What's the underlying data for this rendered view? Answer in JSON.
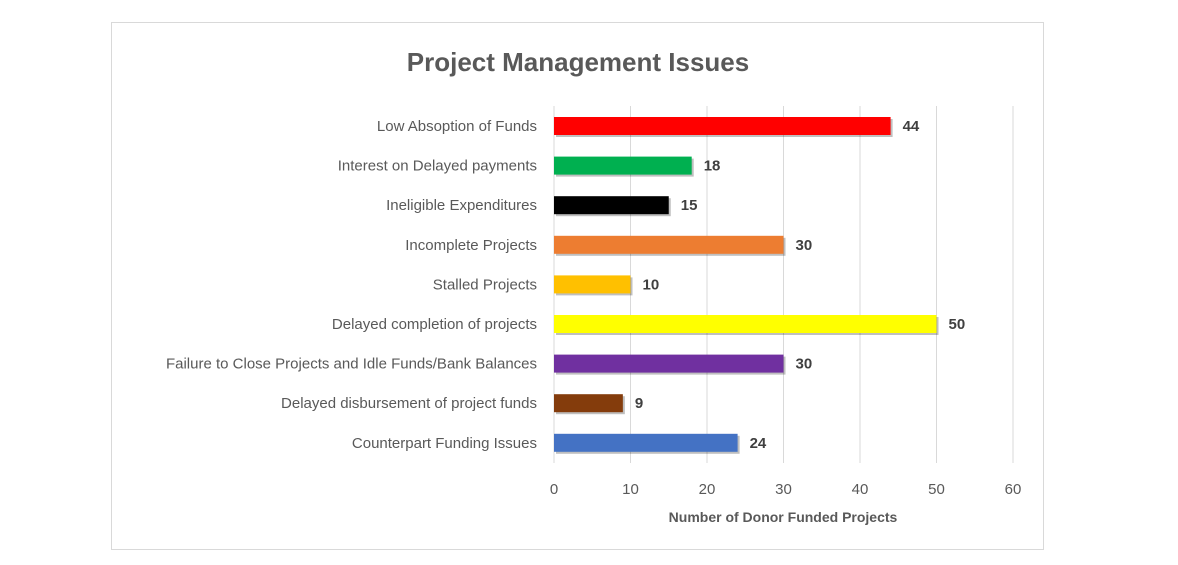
{
  "chart_data": {
    "type": "bar",
    "orientation": "horizontal",
    "title": "Project Management Issues",
    "xlabel": "Number of Donor Funded Projects",
    "ylabel": "",
    "xlim": [
      0,
      60
    ],
    "xticks": [
      0,
      10,
      20,
      30,
      40,
      50,
      60
    ],
    "grid": true,
    "legend": "none",
    "categories": [
      "Low Absoption of Funds",
      "Interest on Delayed payments",
      "Ineligible Expenditures",
      "Incomplete Projects",
      "Stalled Projects",
      "Delayed completion of projects",
      "Failure to Close Projects and Idle Funds/Bank Balances",
      "Delayed disbursement of project funds",
      "Counterpart Funding Issues"
    ],
    "values": [
      44,
      18,
      15,
      30,
      10,
      50,
      30,
      9,
      24
    ],
    "colors": [
      "#ff0000",
      "#00b050",
      "#000000",
      "#ed7d31",
      "#ffc000",
      "#ffff00",
      "#7030a0",
      "#843c0c",
      "#4472c4"
    ]
  }
}
